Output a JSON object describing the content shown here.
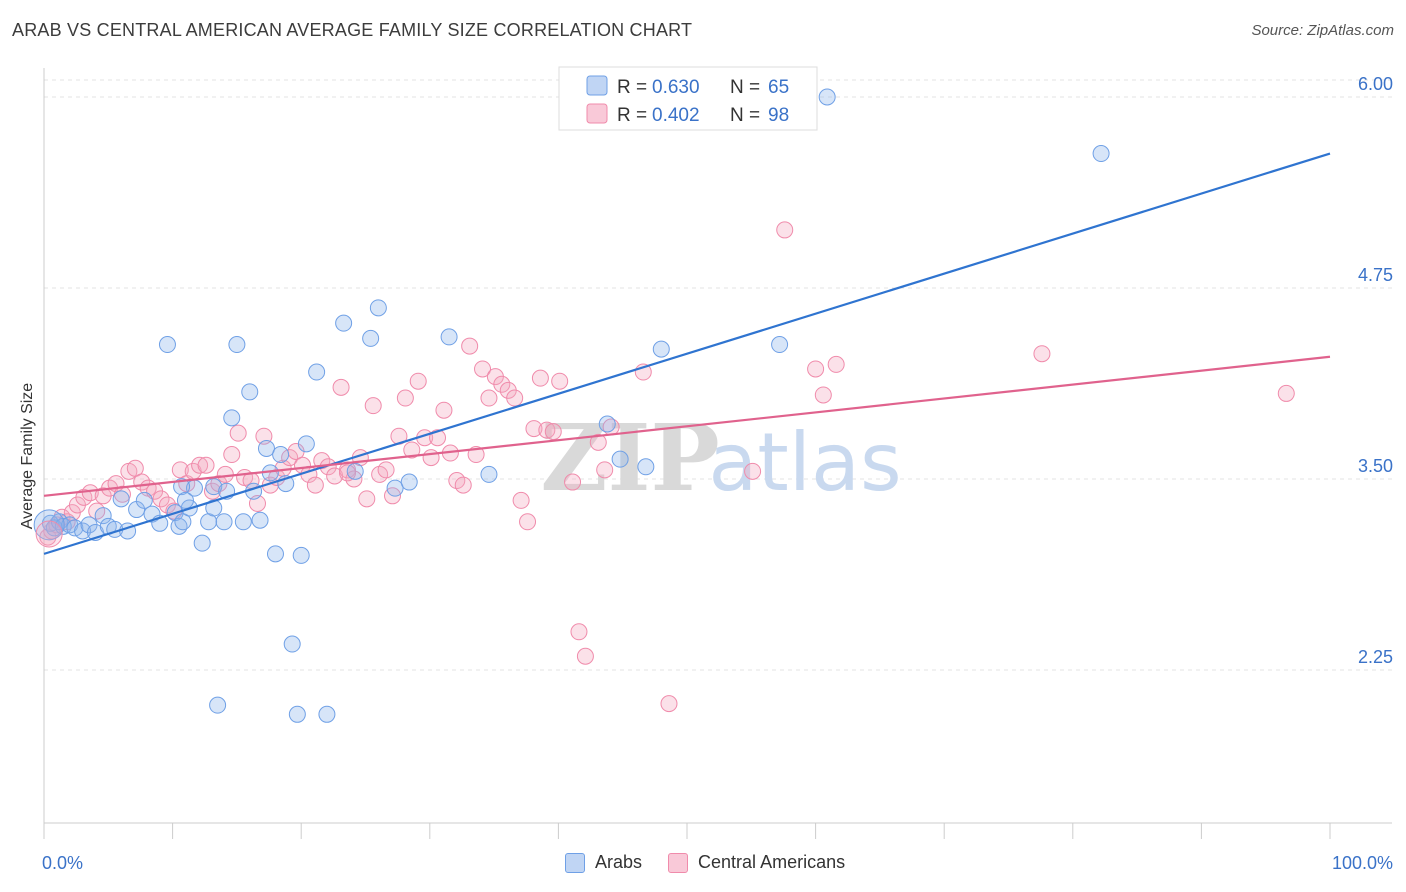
{
  "header": {
    "title": "ARAB VS CENTRAL AMERICAN AVERAGE FAMILY SIZE CORRELATION CHART",
    "source": "Source: ZipAtlas.com"
  },
  "watermark": {
    "zip": "ZIP",
    "atlas": "atlas"
  },
  "legend_stats": [
    {
      "r_label": "R = ",
      "r_value": "0.630",
      "n_label": "N = ",
      "n_value": "65",
      "color": "#6fa0e6"
    },
    {
      "r_label": "R = ",
      "r_value": "0.402",
      "n_label": "N = ",
      "n_value": "98",
      "color": "#f08bab"
    }
  ],
  "chart_data": {
    "type": "scatter",
    "title": "ARAB VS CENTRAL AMERICAN AVERAGE FAMILY SIZE CORRELATION CHART",
    "ylabel": "Average Family Size",
    "xlabel": "",
    "xlim": [
      0,
      100
    ],
    "ylim": [
      1.4,
      6.1
    ],
    "x_tick_labels": [
      "0.0%",
      "100.0%"
    ],
    "y_ticks": [
      2.25,
      3.5,
      4.75,
      6.0
    ],
    "y_tick_labels": [
      "2.25",
      "3.50",
      "4.75",
      "6.00"
    ],
    "grid": true,
    "legend_position": "top-center",
    "series": [
      {
        "name": "Arabs",
        "color": "#6fa0e6",
        "line_color": "#2f74d0",
        "trend": [
          [
            0,
            3.01
          ],
          [
            100,
            5.63
          ]
        ],
        "points": [
          [
            0.5,
            3.21
          ],
          [
            0.8,
            3.18
          ],
          [
            1.2,
            3.22
          ],
          [
            1.5,
            3.19
          ],
          [
            2.0,
            3.2
          ],
          [
            2.4,
            3.18
          ],
          [
            3.0,
            3.16
          ],
          [
            3.5,
            3.2
          ],
          [
            4.0,
            3.15
          ],
          [
            4.6,
            3.26
          ],
          [
            5.0,
            3.19
          ],
          [
            5.5,
            3.17
          ],
          [
            6.0,
            3.37
          ],
          [
            6.5,
            3.16
          ],
          [
            7.2,
            3.3
          ],
          [
            7.8,
            3.36
          ],
          [
            8.4,
            3.27
          ],
          [
            9.0,
            3.21
          ],
          [
            9.6,
            4.38
          ],
          [
            10.2,
            3.28
          ],
          [
            10.5,
            3.19
          ],
          [
            10.8,
            3.22
          ],
          [
            11.3,
            3.31
          ],
          [
            11.7,
            3.44
          ],
          [
            12.3,
            3.08
          ],
          [
            12.8,
            3.22
          ],
          [
            13.2,
            3.45
          ],
          [
            13.5,
            2.02
          ],
          [
            14.0,
            3.22
          ],
          [
            14.2,
            3.42
          ],
          [
            14.6,
            3.9
          ],
          [
            15.0,
            4.38
          ],
          [
            15.5,
            3.22
          ],
          [
            16.0,
            4.07
          ],
          [
            16.3,
            3.42
          ],
          [
            16.8,
            3.23
          ],
          [
            17.3,
            3.7
          ],
          [
            17.6,
            3.54
          ],
          [
            18.0,
            3.01
          ],
          [
            18.4,
            3.66
          ],
          [
            18.8,
            3.47
          ],
          [
            19.3,
            2.42
          ],
          [
            19.7,
            1.96
          ],
          [
            20.0,
            3.0
          ],
          [
            20.4,
            3.73
          ],
          [
            21.2,
            4.2
          ],
          [
            22.0,
            1.96
          ],
          [
            23.3,
            4.52
          ],
          [
            24.2,
            3.55
          ],
          [
            25.4,
            4.42
          ],
          [
            26.0,
            4.62
          ],
          [
            27.3,
            3.44
          ],
          [
            28.4,
            3.48
          ],
          [
            31.5,
            4.43
          ],
          [
            34.6,
            3.53
          ],
          [
            43.8,
            3.86
          ],
          [
            44.8,
            3.63
          ],
          [
            46.8,
            3.58
          ],
          [
            48.0,
            4.35
          ],
          [
            57.2,
            4.38
          ],
          [
            60.9,
            6.0
          ],
          [
            82.2,
            5.63
          ],
          [
            13.2,
            3.31
          ],
          [
            10.7,
            3.45
          ],
          [
            11.0,
            3.36
          ]
        ]
      },
      {
        "name": "Central Americans",
        "color": "#f08bab",
        "line_color": "#e0628d",
        "trend": [
          [
            0,
            3.39
          ],
          [
            100,
            4.3
          ]
        ],
        "points": [
          [
            0.3,
            3.12
          ],
          [
            0.6,
            3.16
          ],
          [
            1.0,
            3.2
          ],
          [
            1.4,
            3.25
          ],
          [
            1.8,
            3.22
          ],
          [
            2.2,
            3.28
          ],
          [
            2.6,
            3.33
          ],
          [
            3.1,
            3.38
          ],
          [
            3.6,
            3.41
          ],
          [
            4.1,
            3.29
          ],
          [
            4.6,
            3.39
          ],
          [
            5.1,
            3.44
          ],
          [
            5.6,
            3.47
          ],
          [
            6.1,
            3.4
          ],
          [
            6.6,
            3.55
          ],
          [
            7.1,
            3.57
          ],
          [
            7.6,
            3.48
          ],
          [
            8.1,
            3.44
          ],
          [
            8.6,
            3.42
          ],
          [
            9.1,
            3.37
          ],
          [
            9.6,
            3.33
          ],
          [
            10.1,
            3.29
          ],
          [
            10.6,
            3.56
          ],
          [
            11.1,
            3.47
          ],
          [
            11.6,
            3.55
          ],
          [
            12.1,
            3.59
          ],
          [
            12.6,
            3.59
          ],
          [
            13.1,
            3.42
          ],
          [
            13.6,
            3.47
          ],
          [
            14.1,
            3.53
          ],
          [
            14.6,
            3.66
          ],
          [
            15.1,
            3.8
          ],
          [
            15.6,
            3.51
          ],
          [
            16.1,
            3.49
          ],
          [
            16.6,
            3.34
          ],
          [
            17.1,
            3.78
          ],
          [
            17.6,
            3.46
          ],
          [
            18.1,
            3.51
          ],
          [
            18.6,
            3.57
          ],
          [
            19.1,
            3.64
          ],
          [
            19.6,
            3.68
          ],
          [
            20.1,
            3.59
          ],
          [
            20.6,
            3.53
          ],
          [
            21.1,
            3.46
          ],
          [
            21.6,
            3.62
          ],
          [
            22.1,
            3.58
          ],
          [
            22.6,
            3.52
          ],
          [
            23.1,
            4.1
          ],
          [
            23.6,
            3.56
          ],
          [
            24.1,
            3.5
          ],
          [
            24.6,
            3.64
          ],
          [
            25.1,
            3.37
          ],
          [
            25.6,
            3.98
          ],
          [
            26.1,
            3.53
          ],
          [
            26.6,
            3.56
          ],
          [
            27.1,
            3.39
          ],
          [
            27.6,
            3.78
          ],
          [
            28.1,
            4.03
          ],
          [
            28.6,
            3.69
          ],
          [
            29.1,
            4.14
          ],
          [
            29.6,
            3.77
          ],
          [
            30.1,
            3.64
          ],
          [
            30.6,
            3.77
          ],
          [
            31.1,
            3.95
          ],
          [
            31.6,
            3.67
          ],
          [
            32.1,
            3.49
          ],
          [
            32.6,
            3.46
          ],
          [
            33.1,
            4.37
          ],
          [
            33.6,
            3.66
          ],
          [
            34.1,
            4.22
          ],
          [
            34.6,
            4.03
          ],
          [
            35.1,
            4.17
          ],
          [
            35.6,
            4.12
          ],
          [
            36.1,
            4.08
          ],
          [
            36.6,
            4.03
          ],
          [
            37.1,
            3.36
          ],
          [
            37.6,
            3.22
          ],
          [
            38.1,
            3.83
          ],
          [
            38.6,
            4.16
          ],
          [
            39.1,
            3.82
          ],
          [
            39.6,
            3.81
          ],
          [
            40.1,
            4.14
          ],
          [
            41.1,
            3.48
          ],
          [
            41.6,
            2.5
          ],
          [
            42.1,
            2.34
          ],
          [
            43.1,
            3.74
          ],
          [
            43.6,
            3.56
          ],
          [
            44.1,
            3.84
          ],
          [
            46.6,
            4.2
          ],
          [
            48.6,
            2.03
          ],
          [
            57.6,
            5.13
          ],
          [
            55.1,
            3.55
          ],
          [
            60.0,
            4.22
          ],
          [
            60.6,
            4.05
          ],
          [
            61.6,
            4.25
          ],
          [
            77.6,
            4.32
          ],
          [
            96.6,
            4.06
          ],
          [
            23.6,
            3.54
          ]
        ]
      }
    ]
  }
}
